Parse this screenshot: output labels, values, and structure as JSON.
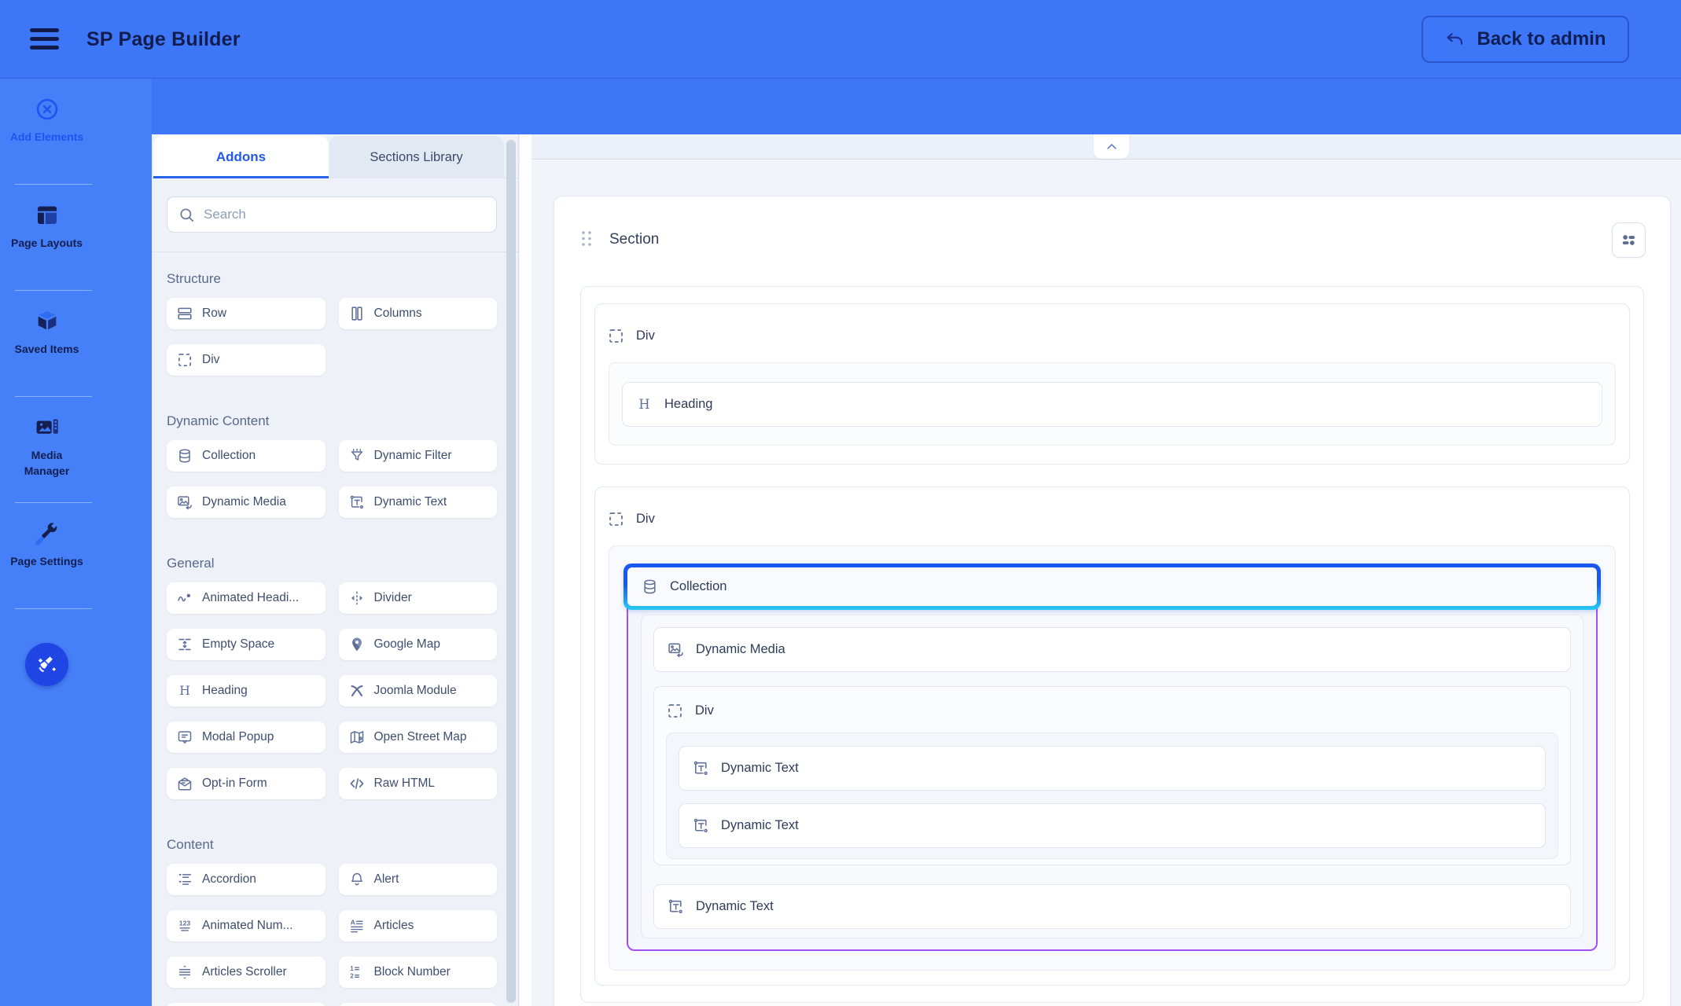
{
  "topbar": {
    "title": "SP Page Builder",
    "back_label": "Back to admin"
  },
  "sidebar": {
    "items": [
      {
        "label": "Add Elements",
        "icon": "circle-x-icon",
        "active": true
      },
      {
        "label": "Page Layouts",
        "icon": "page-layouts-icon",
        "active": false
      },
      {
        "label": "Saved Items",
        "icon": "cube-icon",
        "active": false
      },
      {
        "label": "Media Manager",
        "icon": "media-manager-icon",
        "active": false
      },
      {
        "label": "Page Settings",
        "icon": "page-settings-icon",
        "active": false
      }
    ],
    "fab_icon": "broom-icon"
  },
  "addons_panel": {
    "tabs": [
      {
        "label": "Addons",
        "active": true
      },
      {
        "label": "Sections Library",
        "active": false
      }
    ],
    "search_placeholder": "Search",
    "sections": [
      {
        "title": "Structure",
        "items": [
          {
            "label": "Row",
            "icon": "row-icon"
          },
          {
            "label": "Columns",
            "icon": "columns-icon"
          },
          {
            "label": "Div",
            "icon": "div-icon"
          }
        ]
      },
      {
        "title": "Dynamic Content",
        "items": [
          {
            "label": "Collection",
            "icon": "collection-icon"
          },
          {
            "label": "Dynamic Filter",
            "icon": "dynamic-filter-icon"
          },
          {
            "label": "Dynamic Media",
            "icon": "dynamic-media-icon"
          },
          {
            "label": "Dynamic Text",
            "icon": "dynamic-text-icon"
          }
        ]
      },
      {
        "title": "General",
        "items": [
          {
            "label": "Animated Headi...",
            "icon": "animated-heading-icon"
          },
          {
            "label": "Divider",
            "icon": "divider-icon"
          },
          {
            "label": "Empty Space",
            "icon": "empty-space-icon"
          },
          {
            "label": "Google Map",
            "icon": "google-map-icon"
          },
          {
            "label": "Heading",
            "icon": "heading-icon"
          },
          {
            "label": "Joomla Module",
            "icon": "joomla-icon"
          },
          {
            "label": "Modal Popup",
            "icon": "modal-popup-icon"
          },
          {
            "label": "Open Street Map",
            "icon": "osm-icon"
          },
          {
            "label": "Opt-in Form",
            "icon": "opt-in-form-icon"
          },
          {
            "label": "Raw HTML",
            "icon": "raw-html-icon"
          }
        ]
      },
      {
        "title": "Content",
        "items": [
          {
            "label": "Accordion",
            "icon": "accordion-icon"
          },
          {
            "label": "Alert",
            "icon": "alert-bell-icon"
          },
          {
            "label": "Animated Num...",
            "icon": "animated-numbers-icon"
          },
          {
            "label": "Articles",
            "icon": "articles-icon"
          },
          {
            "label": "Articles Scroller",
            "icon": "articles-scroller-icon"
          },
          {
            "label": "Block Number",
            "icon": "block-number-icon"
          }
        ]
      }
    ]
  },
  "canvas": {
    "section_label": "Section",
    "blocks": {
      "div1": "Div",
      "heading": "Heading",
      "div2": "Div",
      "collection": "Collection",
      "dynamic_media": "Dynamic Media",
      "inner_div": "Div",
      "dynamic_text_a": "Dynamic Text",
      "dynamic_text_b": "Dynamic Text",
      "dynamic_text_c": "Dynamic Text"
    }
  },
  "colors": {
    "topbar_blue": "#3D77F7",
    "rail_blue": "#4680F8",
    "accent_blue": "#2563EB",
    "selected_border_top": "#1A57EF",
    "selected_border_bottom": "#27CBF1",
    "collection_outline": "#A24FF6"
  }
}
